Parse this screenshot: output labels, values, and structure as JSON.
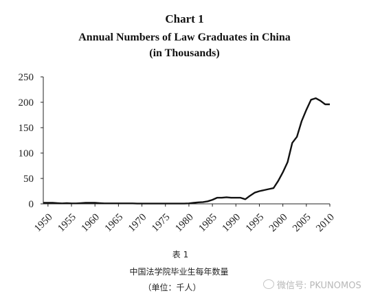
{
  "chart_data": {
    "type": "line",
    "title": "Chart 1",
    "subtitle": "Annual Numbers of Law Graduates in China",
    "subtitle2": "(in Thousands)",
    "xlabel": "",
    "ylabel": "",
    "xlim": [
      1949,
      2010
    ],
    "ylim": [
      0,
      250
    ],
    "yticks": [
      0,
      50,
      100,
      150,
      200,
      250
    ],
    "xticks": [
      1950,
      1955,
      1960,
      1965,
      1970,
      1975,
      1980,
      1985,
      1990,
      1995,
      2000,
      2005,
      2010
    ],
    "grid": false,
    "series": [
      {
        "x": [
          1949,
          1950,
          1951,
          1952,
          1953,
          1954,
          1955,
          1956,
          1957,
          1958,
          1959,
          1960,
          1961,
          1962,
          1963,
          1964,
          1965,
          1966,
          1967,
          1968,
          1969,
          1970,
          1971,
          1972,
          1973,
          1974,
          1975,
          1976,
          1977,
          1978,
          1979,
          1980,
          1981,
          1982,
          1983,
          1984,
          1985,
          1986,
          1987,
          1988,
          1989,
          1990,
          1991,
          1992,
          1993,
          1994,
          1995,
          1996,
          1997,
          1998,
          1999,
          2000,
          2001,
          2002,
          2003,
          2004,
          2005,
          2006,
          2007,
          2008,
          2009,
          2010
        ],
        "y": [
          2,
          2,
          2,
          1.5,
          1,
          1.5,
          1,
          1,
          1.5,
          2,
          2,
          2,
          1.5,
          1,
          1,
          1,
          1,
          1,
          1,
          1,
          0.5,
          0.5,
          0.5,
          0.5,
          0.5,
          0.5,
          0.5,
          0.5,
          0.5,
          0.5,
          0.5,
          1,
          2,
          3,
          3.5,
          5,
          8,
          12,
          12,
          13,
          12,
          12,
          12,
          9,
          16,
          22,
          25,
          27,
          29,
          31,
          45,
          62,
          82,
          120,
          132,
          163,
          185,
          205,
          208,
          203,
          196,
          196
        ]
      }
    ]
  },
  "captions": {
    "table_label": "表 1",
    "chinese_title": "中国法学院毕业生每年数量",
    "unit": "（单位：千人）"
  },
  "watermark": {
    "text": "微信号: PKUNOMOS"
  }
}
